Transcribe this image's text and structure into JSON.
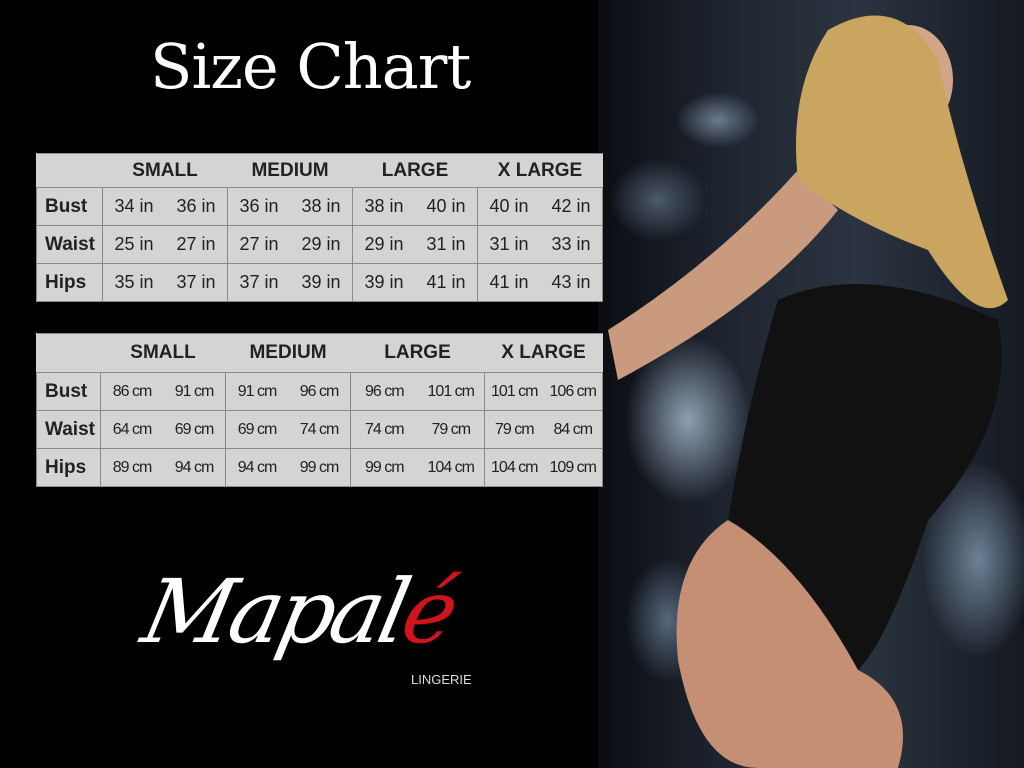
{
  "title": "Size Chart",
  "sizes": [
    "SMALL",
    "MEDIUM",
    "LARGE",
    "X LARGE"
  ],
  "inches": {
    "rows": [
      {
        "label": "Bust",
        "values": [
          [
            "34 in",
            "36 in"
          ],
          [
            "36 in",
            "38 in"
          ],
          [
            "38 in",
            "40 in"
          ],
          [
            "40 in",
            "42 in"
          ]
        ]
      },
      {
        "label": "Waist",
        "values": [
          [
            "25 in",
            "27 in"
          ],
          [
            "27 in",
            "29 in"
          ],
          [
            "29 in",
            "31 in"
          ],
          [
            "31 in",
            "33 in"
          ]
        ]
      },
      {
        "label": "Hips",
        "values": [
          [
            "35 in",
            "37 in"
          ],
          [
            "37 in",
            "39 in"
          ],
          [
            "39 in",
            "41 in"
          ],
          [
            "41 in",
            "43 in"
          ]
        ]
      }
    ]
  },
  "centimeters": {
    "rows": [
      {
        "label": "Bust",
        "values": [
          [
            "86 cm",
            "91 cm"
          ],
          [
            "91 cm",
            "96 cm"
          ],
          [
            "96 cm",
            "101 cm"
          ],
          [
            "101 cm",
            "106 cm"
          ]
        ]
      },
      {
        "label": "Waist",
        "values": [
          [
            "64 cm",
            "69 cm"
          ],
          [
            "69 cm",
            "74 cm"
          ],
          [
            "74 cm",
            "79 cm"
          ],
          [
            "79 cm",
            "84 cm"
          ]
        ]
      },
      {
        "label": "Hips",
        "values": [
          [
            "89 cm",
            "94 cm"
          ],
          [
            "94 cm",
            "99 cm"
          ],
          [
            "99 cm",
            "104 cm"
          ],
          [
            "104 cm",
            "109 cm"
          ]
        ]
      }
    ]
  },
  "logo": {
    "main": "Mapal",
    "accent": "é",
    "sub": "LINGERIE",
    "accent_color": "#d0141b"
  }
}
